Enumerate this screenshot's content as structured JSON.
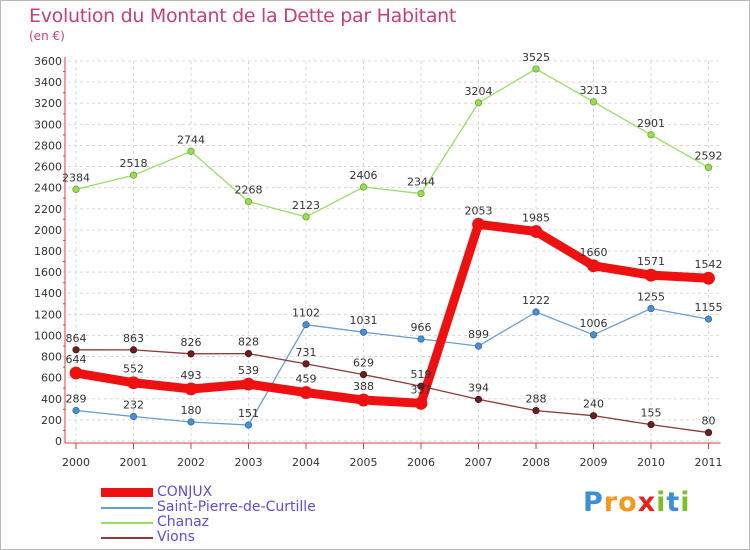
{
  "chart_data": {
    "type": "line",
    "title": "Evolution du Montant de la Dette par Habitant",
    "ylabel": "(en €)",
    "xlabel": "",
    "categories": [
      "2000",
      "2001",
      "2002",
      "2003",
      "2004",
      "2005",
      "2006",
      "2007",
      "2008",
      "2009",
      "2010",
      "2011"
    ],
    "ylim": [
      0,
      3600
    ],
    "yticks": [
      0,
      200,
      400,
      600,
      800,
      1000,
      1200,
      1400,
      1600,
      1800,
      2000,
      2200,
      2400,
      2600,
      2800,
      3000,
      3200,
      3400,
      3600
    ],
    "grid": true,
    "legend_position": "bottom-left",
    "series": [
      {
        "name": "CONJUX",
        "color": "#ee1111",
        "values": [
          644,
          552,
          493,
          539,
          459,
          388,
          357,
          2053,
          1985,
          1660,
          1571,
          1542
        ]
      },
      {
        "name": "Saint-Pierre-de-Curtille",
        "color": "#6a9fd0",
        "values": [
          289,
          232,
          180,
          151,
          1102,
          1031,
          966,
          899,
          1222,
          1006,
          1255,
          1155
        ]
      },
      {
        "name": "Chanaz",
        "color": "#99dd66",
        "values": [
          2384,
          2518,
          2744,
          2268,
          2123,
          2406,
          2344,
          3204,
          3525,
          3213,
          2901,
          2592
        ]
      },
      {
        "name": "Vions",
        "color": "#8b3a3a",
        "values": [
          864,
          863,
          826,
          828,
          731,
          629,
          519,
          394,
          288,
          240,
          155,
          80
        ]
      }
    ]
  },
  "brand": {
    "letters": [
      {
        "ch": "P",
        "color": "#3a8fd8"
      },
      {
        "ch": "r",
        "color": "#f29a1c"
      },
      {
        "ch": "o",
        "color": "#f29a1c"
      },
      {
        "ch": "x",
        "color": "#e2231a"
      },
      {
        "ch": "i",
        "color": "#7cbf2a"
      },
      {
        "ch": "t",
        "color": "#3a8fd8"
      },
      {
        "ch": "i",
        "color": "#7cbf2a"
      }
    ]
  }
}
